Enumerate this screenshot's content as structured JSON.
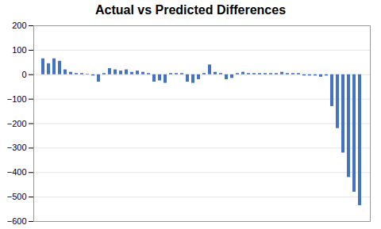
{
  "chart_data": {
    "type": "bar",
    "title": "Actual vs Predicted Differences",
    "categories": [
      null,
      null,
      null,
      null,
      null,
      null,
      null,
      null,
      null,
      null,
      null,
      null,
      null,
      null,
      null,
      null,
      null,
      null,
      null,
      null,
      null,
      null,
      null,
      null,
      null,
      null,
      null,
      null,
      null,
      null,
      null,
      null,
      null,
      null,
      null,
      null,
      null,
      null,
      null,
      null,
      null,
      null,
      null,
      null,
      null,
      null,
      null,
      null,
      null,
      null,
      null,
      null,
      null,
      null,
      null,
      null,
      null,
      null
    ],
    "values": [
      65,
      45,
      65,
      55,
      20,
      10,
      5,
      5,
      2,
      -5,
      -30,
      5,
      25,
      20,
      15,
      20,
      10,
      15,
      10,
      5,
      -30,
      -25,
      -35,
      5,
      5,
      5,
      -30,
      -35,
      -20,
      5,
      40,
      10,
      5,
      -20,
      -15,
      5,
      10,
      5,
      5,
      5,
      5,
      5,
      5,
      10,
      5,
      5,
      5,
      -5,
      -5,
      -5,
      -10,
      -5,
      -130,
      -220,
      -320,
      -420,
      -480,
      -535
    ],
    "color": "#4472C4",
    "ylim": [
      -600,
      200
    ],
    "yticks": [
      -600,
      -500,
      -400,
      -300,
      -200,
      -100,
      0,
      100,
      200
    ],
    "grid": true,
    "tick_labels": "y"
  }
}
